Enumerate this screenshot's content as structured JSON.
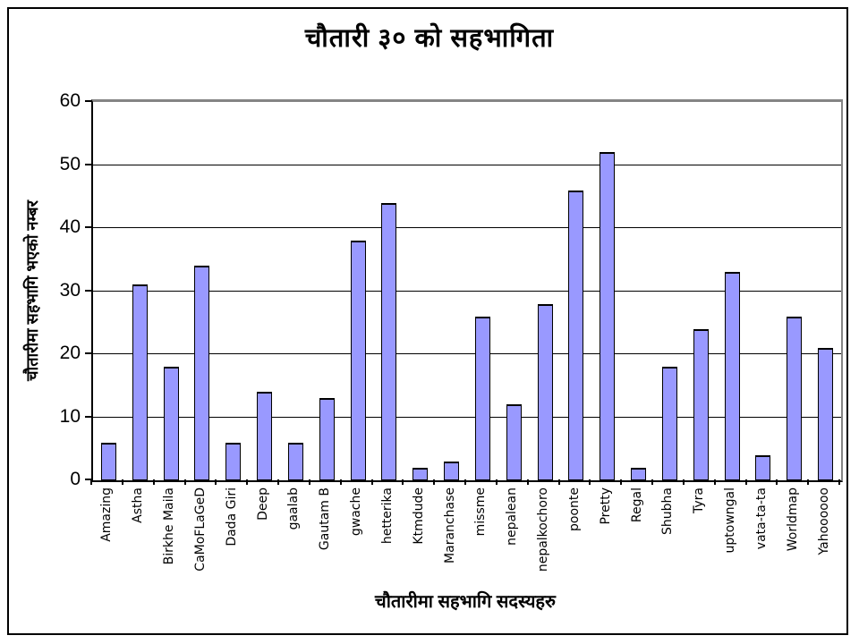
{
  "window": {
    "background": "#ffffff",
    "border_color": "#000000"
  },
  "chart_data": {
    "type": "bar",
    "title": "चौतारी ३० को सहभागिता",
    "xlabel": "चौतारीमा सहभागि सदस्यहरु",
    "ylabel": "चौतारीमा सहभागि भएको नम्बर",
    "categories": [
      "Amazing",
      "Astha",
      "Birkhe Maila",
      "CaMoFLaGeD",
      "Dada Giri",
      "Deep",
      "gaalab",
      "Gautam B",
      "gwache",
      "hetterika",
      "Ktmdude",
      "Maranchase",
      "missme",
      "nepalean",
      "nepalkochoro",
      "poonte",
      "Pretty",
      "Regal",
      "Shubha",
      "Tyra",
      "uptowngal",
      "vata-ta-ta",
      "Worldmap",
      "Yahoooooo"
    ],
    "values": [
      6,
      31,
      18,
      34,
      6,
      14,
      6,
      13,
      38,
      44,
      2,
      3,
      26,
      12,
      28,
      46,
      52,
      2,
      18,
      24,
      33,
      4,
      26,
      21
    ],
    "ylim": [
      0,
      60
    ],
    "yticks": [
      0,
      10,
      20,
      30,
      40,
      50,
      60
    ],
    "grid": true,
    "legend": "none",
    "bar_color": "#9999ff",
    "bar_border_color": "#000000",
    "plot_border_color": "#848484",
    "gridline_color": "#000000"
  }
}
